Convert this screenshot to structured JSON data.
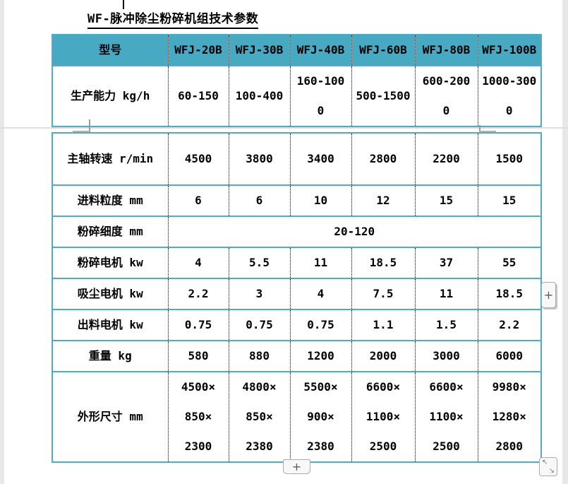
{
  "title": {
    "text": "WF-脉冲除尘粉碎机组技术参数"
  },
  "table": {
    "columns": [
      "型号",
      "WFJ-20B",
      "WFJ-30B",
      "WFJ-40B",
      "WFJ-60B",
      "WFJ-80B",
      "WFJ-100B"
    ],
    "part1_rows": [
      {
        "label": "生产能力 kg/h",
        "cells": [
          [
            "60-150"
          ],
          [
            "100-400"
          ],
          [
            "160-100",
            "0"
          ],
          [
            "500-1500"
          ],
          [
            "600-200",
            "0"
          ],
          [
            "1000-300",
            "0"
          ]
        ]
      }
    ],
    "part2_rows": [
      {
        "label": "主轴转速 r/min",
        "cells": [
          [
            "4500"
          ],
          [
            "3800"
          ],
          [
            "3400"
          ],
          [
            "2800"
          ],
          [
            "2200"
          ],
          [
            "1500"
          ]
        ]
      },
      {
        "label": "进料粒度 mm",
        "cells": [
          [
            "6"
          ],
          [
            "6"
          ],
          [
            "10"
          ],
          [
            "12"
          ],
          [
            "15"
          ],
          [
            "15"
          ]
        ]
      },
      {
        "label": "粉碎细度 mm",
        "merged": "20-120"
      },
      {
        "label": "粉碎电机 kw",
        "cells": [
          [
            "4"
          ],
          [
            "5.5"
          ],
          [
            "11"
          ],
          [
            "18.5"
          ],
          [
            "37"
          ],
          [
            "55"
          ]
        ]
      },
      {
        "label": "吸尘电机 kw",
        "cells": [
          [
            "2.2"
          ],
          [
            "3"
          ],
          [
            "4"
          ],
          [
            "7.5"
          ],
          [
            "11"
          ],
          [
            "18.5"
          ]
        ]
      },
      {
        "label": "出料电机 kw",
        "cells": [
          [
            "0.75"
          ],
          [
            "0.75"
          ],
          [
            "0.75"
          ],
          [
            "1.1"
          ],
          [
            "1.5"
          ],
          [
            "2.2"
          ]
        ]
      },
      {
        "label": "重量 kg",
        "cells": [
          [
            "580"
          ],
          [
            "880"
          ],
          [
            "1200"
          ],
          [
            "2000"
          ],
          [
            "3000"
          ],
          [
            "6000"
          ]
        ]
      },
      {
        "label": "外形尺寸 mm",
        "cells": [
          [
            "4500×",
            "850×",
            "2300"
          ],
          [
            "4800×",
            "850×",
            "2380"
          ],
          [
            "5500×",
            "900×",
            "2380"
          ],
          [
            "6600×",
            "1100×",
            "2500"
          ],
          [
            "6600×",
            "1100×",
            "2500"
          ],
          [
            "9980×",
            "1280×",
            "2800"
          ]
        ]
      }
    ]
  },
  "controls": {
    "insert_column_button": "+",
    "insert_row_button": "+",
    "resize_arrows": [
      "↖",
      "↘"
    ]
  },
  "colors": {
    "header_fill": "#48a9c2",
    "table_border": "#4badc7",
    "page_split_line": "#dedede"
  }
}
